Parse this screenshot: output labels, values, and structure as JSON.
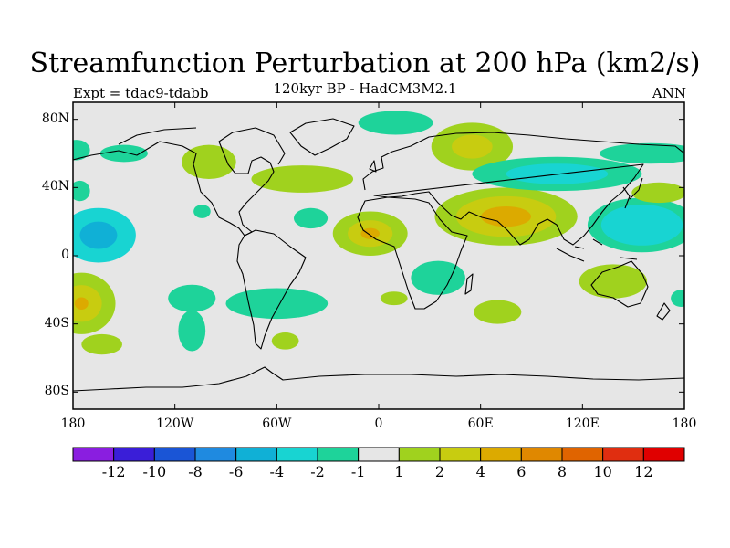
{
  "title": "Streamfunction Perturbation at 200 hPa (km2/s)",
  "subtitle": "120kyr BP - HadCM3M2.1",
  "experiment": "Expt = tdac9-tdabb",
  "season": "ANN",
  "map": {
    "projection": "cylindrical equidistant",
    "lon_range": [
      -180,
      180
    ],
    "lat_range": [
      -90,
      90
    ],
    "lat_ticks": [
      {
        "value": 80,
        "label": "80N"
      },
      {
        "value": 40,
        "label": "40N"
      },
      {
        "value": 0,
        "label": "0"
      },
      {
        "value": -40,
        "label": "40S"
      },
      {
        "value": -80,
        "label": "80S"
      }
    ],
    "lon_ticks": [
      {
        "value": -180,
        "label": "180"
      },
      {
        "value": -120,
        "label": "120W"
      },
      {
        "value": -60,
        "label": "60W"
      },
      {
        "value": 0,
        "label": "0"
      },
      {
        "value": 60,
        "label": "60E"
      },
      {
        "value": 120,
        "label": "120E"
      },
      {
        "value": 180,
        "label": "180"
      }
    ],
    "background_color": "#e6e6e6",
    "coast_color": "#000000"
  },
  "colorbar": {
    "colors": [
      "#8a1ee0",
      "#3a1ed8",
      "#1a55d6",
      "#1f8ae0",
      "#10b0d6",
      "#18d4d2",
      "#1ed39a",
      "#e6e6e6",
      "#a0d21e",
      "#c8cc10",
      "#dcaa00",
      "#e08800",
      "#e06400",
      "#e02e10",
      "#e00000"
    ],
    "tick_labels": [
      "-12",
      "-10",
      "-8",
      "-6",
      "-4",
      "-2",
      "-1",
      "1",
      "2",
      "4",
      "6",
      "8",
      "10",
      "12"
    ]
  },
  "anomalies": [
    {
      "lon": -165,
      "lat": 12,
      "rlon": 22,
      "rlat": 16,
      "level": 5,
      "cores": [
        {
          "level": 4,
          "scale": 0.5
        }
      ]
    },
    {
      "lon": -178,
      "lat": 62,
      "rlon": 8,
      "rlat": 6,
      "level": 6
    },
    {
      "lon": -150,
      "lat": 60,
      "rlon": 14,
      "rlat": 5,
      "level": 6
    },
    {
      "lon": -176,
      "lat": 38,
      "rlon": 6,
      "rlat": 6,
      "level": 6
    },
    {
      "lon": -175,
      "lat": -28,
      "rlon": 20,
      "rlat": 18,
      "level": 8,
      "cores": [
        {
          "level": 9,
          "scale": 0.6
        },
        {
          "level": 10,
          "scale": 0.2
        }
      ]
    },
    {
      "lon": -110,
      "lat": -44,
      "rlon": 8,
      "rlat": 12,
      "level": 6
    },
    {
      "lon": -110,
      "lat": -25,
      "rlon": 14,
      "rlat": 8,
      "level": 6
    },
    {
      "lon": -163,
      "lat": -52,
      "rlon": 12,
      "rlat": 6,
      "level": 8
    },
    {
      "lon": -60,
      "lat": -28,
      "rlon": 30,
      "rlat": 9,
      "level": 6
    },
    {
      "lon": -55,
      "lat": -50,
      "rlon": 8,
      "rlat": 5,
      "level": 8
    },
    {
      "lon": -100,
      "lat": 55,
      "rlon": 16,
      "rlat": 10,
      "level": 8
    },
    {
      "lon": -45,
      "lat": 45,
      "rlon": 30,
      "rlat": 8,
      "level": 8
    },
    {
      "lon": -40,
      "lat": 22,
      "rlon": 10,
      "rlat": 6,
      "level": 6
    },
    {
      "lon": -104,
      "lat": 26,
      "rlon": 5,
      "rlat": 4,
      "level": 6
    },
    {
      "lon": -5,
      "lat": 13,
      "rlon": 22,
      "rlat": 13,
      "level": 8,
      "cores": [
        {
          "level": 9,
          "scale": 0.6
        },
        {
          "level": 10,
          "scale": 0.25
        }
      ]
    },
    {
      "lon": 10,
      "lat": 78,
      "rlon": 22,
      "rlat": 7,
      "level": 6
    },
    {
      "lon": 55,
      "lat": 64,
      "rlon": 24,
      "rlat": 14,
      "level": 8,
      "cores": [
        {
          "level": 9,
          "scale": 0.5
        }
      ]
    },
    {
      "lon": 75,
      "lat": 23,
      "rlon": 42,
      "rlat": 17,
      "level": 8,
      "cores": [
        {
          "level": 9,
          "scale": 0.7
        },
        {
          "level": 10,
          "scale": 0.35
        }
      ]
    },
    {
      "lon": 105,
      "lat": 48,
      "rlon": 50,
      "rlat": 10,
      "level": 6,
      "cores": [
        {
          "level": 5,
          "scale": 0.6
        }
      ]
    },
    {
      "lon": 35,
      "lat": -13,
      "rlon": 16,
      "rlat": 10,
      "level": 6
    },
    {
      "lon": 9,
      "lat": -25,
      "rlon": 8,
      "rlat": 4,
      "level": 8
    },
    {
      "lon": 70,
      "lat": -33,
      "rlon": 14,
      "rlat": 7,
      "level": 8
    },
    {
      "lon": 155,
      "lat": 18,
      "rlon": 32,
      "rlat": 16,
      "level": 6,
      "cores": [
        {
          "level": 5,
          "scale": 0.75
        }
      ]
    },
    {
      "lon": 165,
      "lat": 37,
      "rlon": 16,
      "rlat": 6,
      "level": 8
    },
    {
      "lon": 138,
      "lat": -15,
      "rlon": 20,
      "rlat": 10,
      "level": 8
    },
    {
      "lon": 178,
      "lat": -25,
      "rlon": 6,
      "rlat": 5,
      "level": 6
    },
    {
      "lon": 160,
      "lat": 60,
      "rlon": 30,
      "rlat": 6,
      "level": 6
    }
  ]
}
